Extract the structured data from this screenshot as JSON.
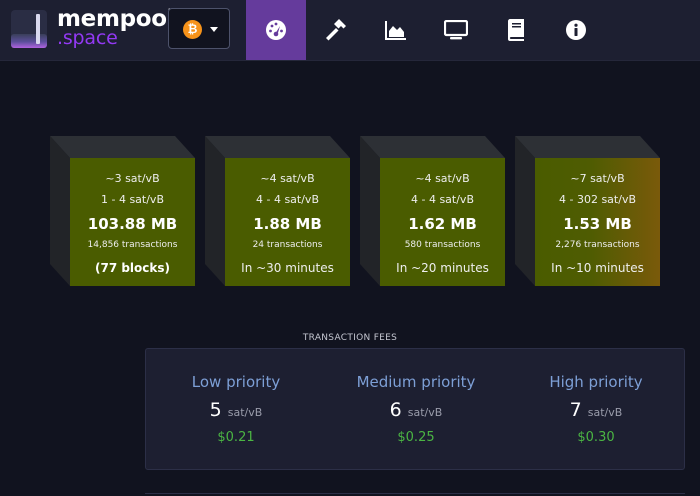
{
  "brand": {
    "top": "mempool",
    "bottom": ".space"
  },
  "network": {
    "icon": "bitcoin-icon",
    "symbol": "₿"
  },
  "nav": [
    {
      "name": "nav-dashboard",
      "icon": "gauge-icon",
      "active": true
    },
    {
      "name": "nav-mining",
      "icon": "hammer-icon",
      "active": false
    },
    {
      "name": "nav-graphs",
      "icon": "area-chart-icon",
      "active": false
    },
    {
      "name": "nav-tv",
      "icon": "monitor-icon",
      "active": false
    },
    {
      "name": "nav-docs",
      "icon": "book-icon",
      "active": false
    },
    {
      "name": "nav-about",
      "icon": "info-icon",
      "active": false
    }
  ],
  "blocks": [
    {
      "median": "~3 sat/vB",
      "range": "1 - 4 sat/vB",
      "size": "103.88 MB",
      "txs": "14,856 transactions",
      "eta": "(77 blocks)"
    },
    {
      "median": "~4 sat/vB",
      "range": "4 - 4 sat/vB",
      "size": "1.88 MB",
      "txs": "24 transactions",
      "eta": "In ~30 minutes"
    },
    {
      "median": "~4 sat/vB",
      "range": "4 - 4 sat/vB",
      "size": "1.62 MB",
      "txs": "580 transactions",
      "eta": "In ~20 minutes"
    },
    {
      "median": "~7 sat/vB",
      "range": "4 - 302 sat/vB",
      "size": "1.53 MB",
      "txs": "2,276 transactions",
      "eta": "In ~10 minutes"
    }
  ],
  "fees": {
    "title": "TRANSACTION FEES",
    "unit": "sat/vB",
    "low": {
      "label": "Low priority",
      "rate": "5",
      "usd": "$0.21"
    },
    "medium": {
      "label": "Medium priority",
      "rate": "6",
      "usd": "$0.25"
    },
    "high": {
      "label": "High priority",
      "rate": "7",
      "usd": "$0.30"
    }
  },
  "colors": {
    "accent": "#653b9c",
    "block_green": "#4a5c00",
    "block_orange": "#7a5a0a",
    "usd_green": "#4bb543",
    "priority_blue": "#7d9fd6"
  }
}
